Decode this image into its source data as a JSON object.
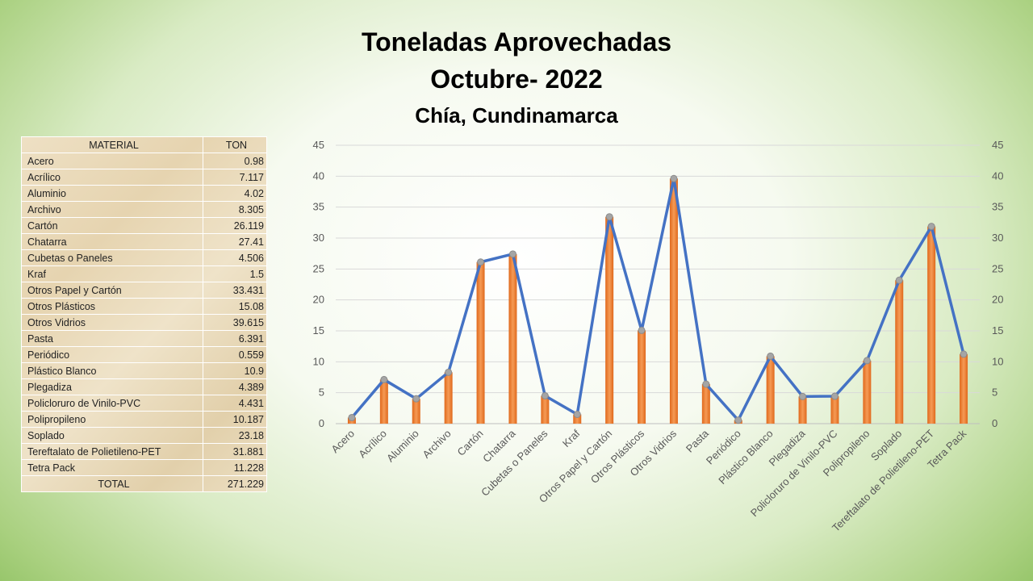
{
  "title": {
    "line1": "Toneladas Aprovechadas",
    "line2": "Octubre- 2022",
    "subtitle": "Chía, Cundinamarca"
  },
  "table": {
    "headers": [
      "MATERIAL",
      "TON"
    ],
    "rows": [
      [
        "Acero",
        "0.98"
      ],
      [
        "Acrílico",
        "7.117"
      ],
      [
        "Aluminio",
        "4.02"
      ],
      [
        "Archivo",
        "8.305"
      ],
      [
        "Cartón",
        "26.119"
      ],
      [
        "Chatarra",
        "27.41"
      ],
      [
        "Cubetas o Paneles",
        "4.506"
      ],
      [
        "Kraf",
        "1.5"
      ],
      [
        "Otros Papel y Cartón",
        "33.431"
      ],
      [
        "Otros Plásticos",
        "15.08"
      ],
      [
        "Otros Vidrios",
        "39.615"
      ],
      [
        "Pasta",
        "6.391"
      ],
      [
        "Periódico",
        "0.559"
      ],
      [
        "Plástico Blanco",
        "10.9"
      ],
      [
        "Plegadiza",
        "4.389"
      ],
      [
        "Policloruro de Vinilo-PVC",
        "4.431"
      ],
      [
        "Polipropileno",
        "10.187"
      ],
      [
        "Soplado",
        "23.18"
      ],
      [
        "Tereftalato de Polietileno-PET",
        "31.881"
      ],
      [
        "Tetra Pack",
        "11.228"
      ]
    ],
    "total_label": "TOTAL",
    "total_value": "271.229"
  },
  "chart_data": {
    "type": "bar+line",
    "title": "Toneladas Aprovechadas Octubre- 2022",
    "categories": [
      "Acero",
      "Acrílico",
      "Aluminio",
      "Archivo",
      "Cartón",
      "Chatarra",
      "Cubetas o Paneles",
      "Kraf",
      "Otros Papel y Cartón",
      "Otros Plásticos",
      "Otros Vidrios",
      "Pasta",
      "Periódico",
      "Plástico Blanco",
      "Plegadiza",
      "Policloruro de Vinilo-PVC",
      "Polipropileno",
      "Soplado",
      "Tereftalato de Polietileno-PET",
      "Tetra Pack"
    ],
    "values": [
      0.98,
      7.117,
      4.02,
      8.305,
      26.119,
      27.41,
      4.506,
      1.5,
      33.431,
      15.08,
      39.615,
      6.391,
      0.559,
      10.9,
      4.389,
      4.431,
      10.187,
      23.18,
      31.881,
      11.228
    ],
    "ylim": [
      0,
      45
    ],
    "yticks": [
      0,
      5,
      10,
      15,
      20,
      25,
      30,
      35,
      40,
      45
    ],
    "grid": true,
    "colors": {
      "bar": "#ED7D31",
      "line": "#4472C4",
      "marker": "#A5A5A5"
    }
  }
}
